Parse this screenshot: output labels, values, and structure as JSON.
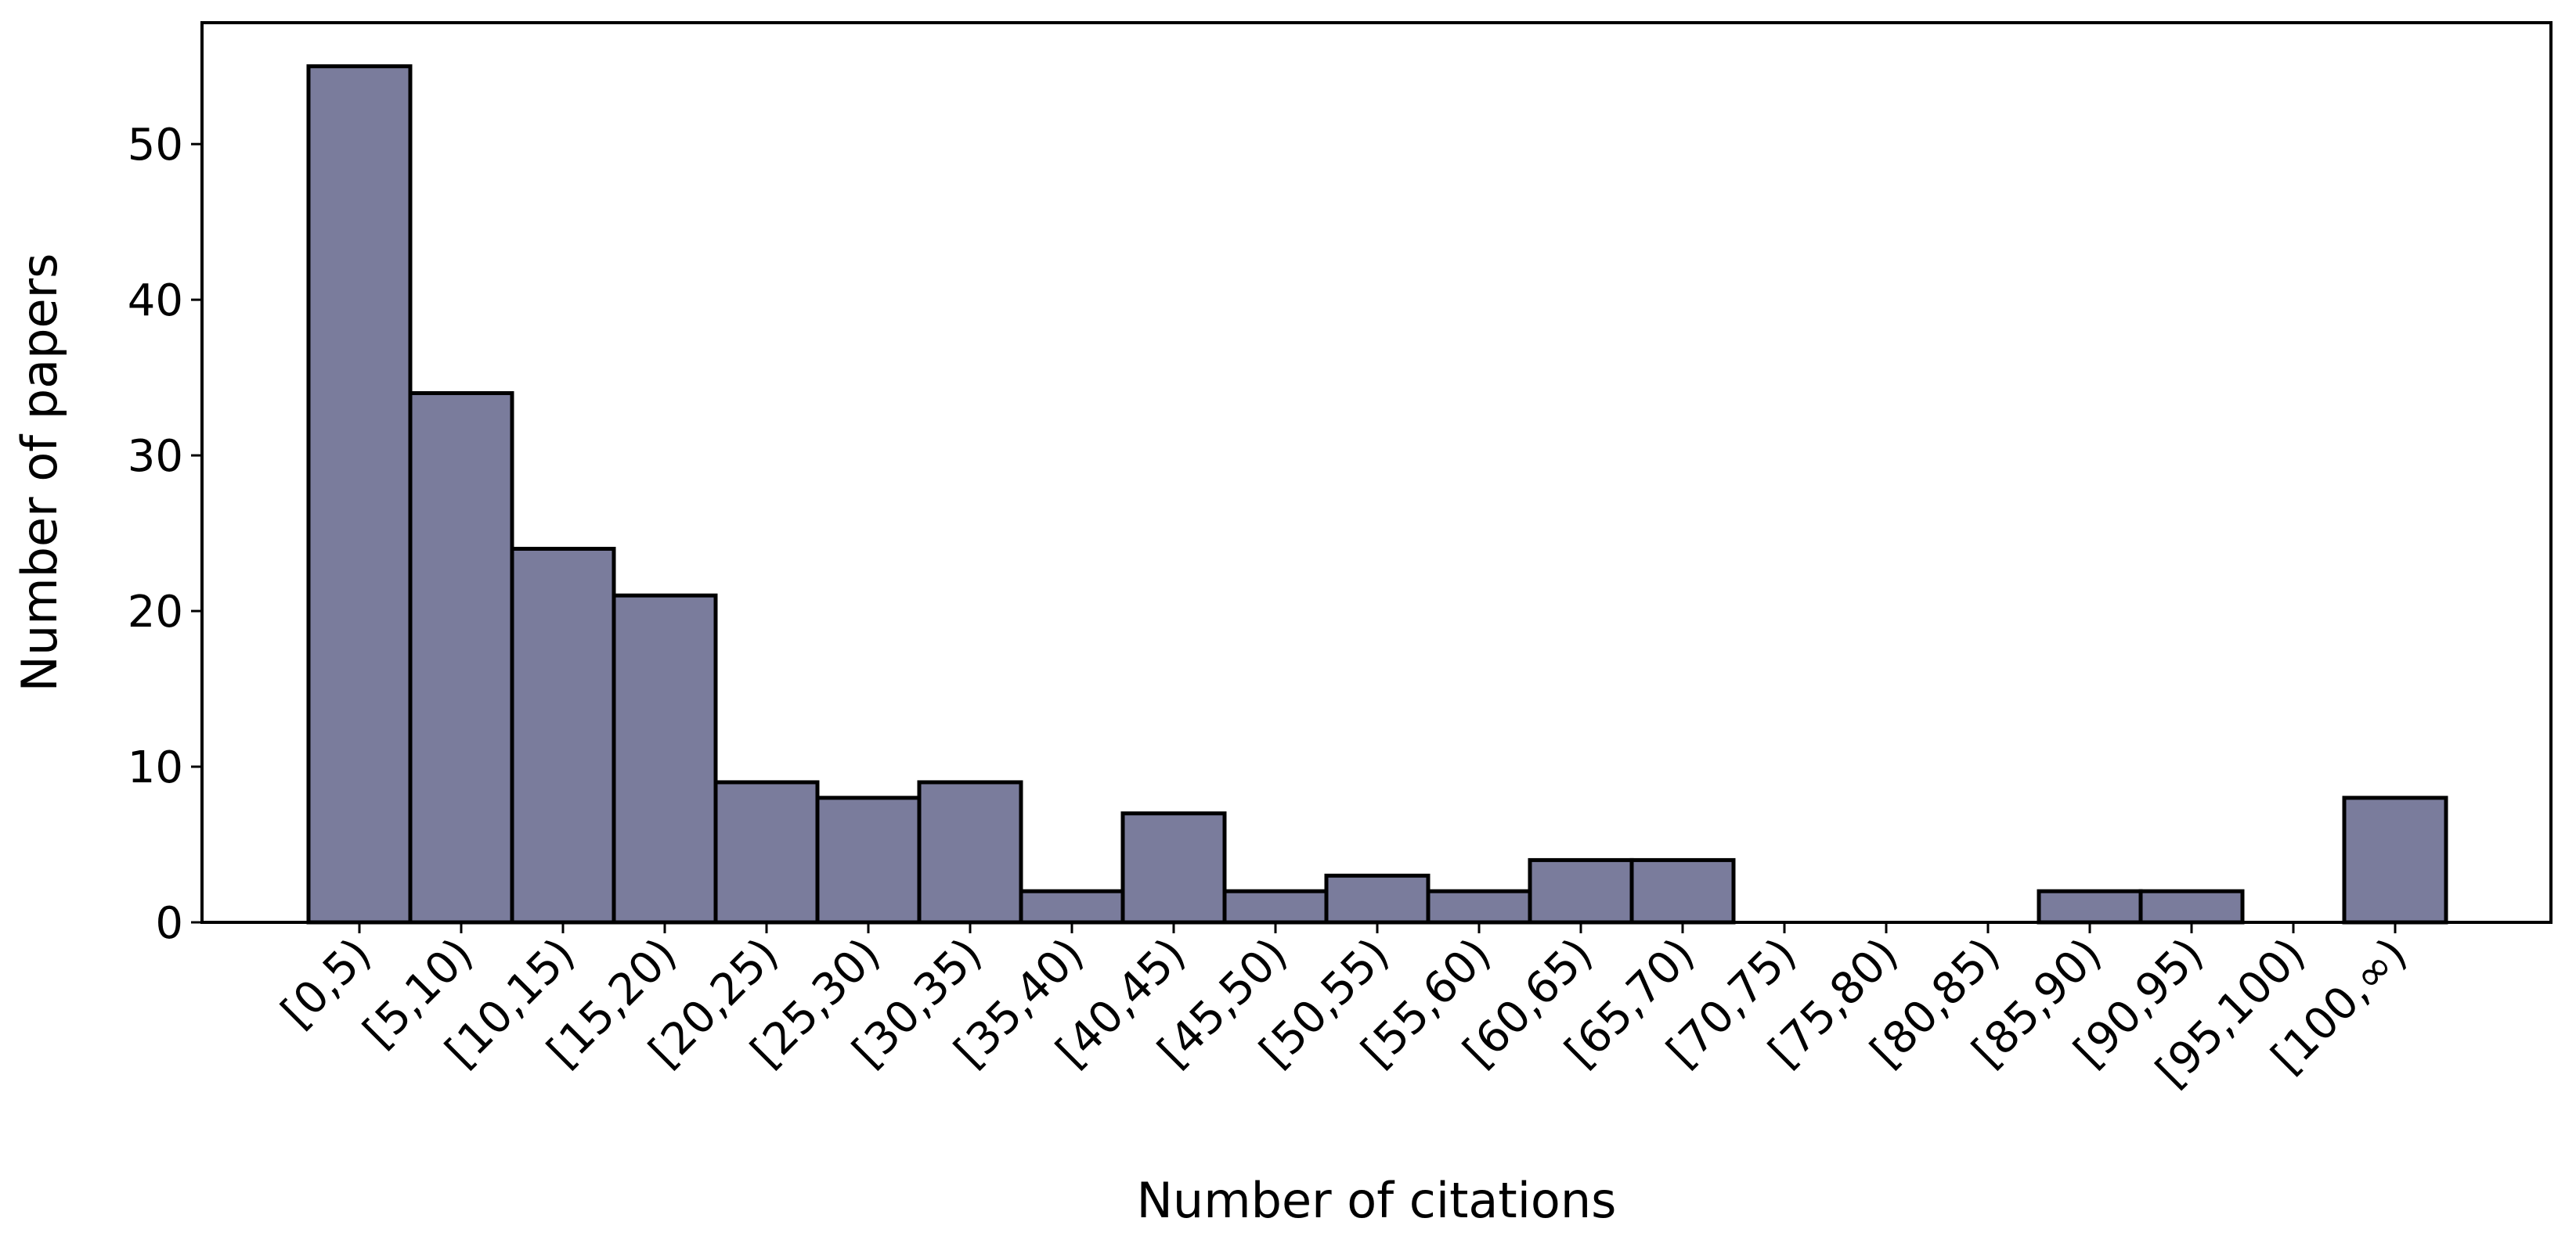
{
  "chart_data": {
    "type": "bar",
    "x_label": "Number of citations",
    "y_label": "Number of papers",
    "categories": [
      "[0,5)",
      "[5,10)",
      "[10,15)",
      "[15,20)",
      "[20,25)",
      "[25,30)",
      "[30,35)",
      "[35,40)",
      "[40,45)",
      "[45,50)",
      "[50,55)",
      "[55,60)",
      "[60,65)",
      "[65,70)",
      "[70,75)",
      "[75,80)",
      "[80,85)",
      "[85,90)",
      "[90,95)",
      "[95,100)",
      "[100,∞)"
    ],
    "values": [
      55,
      34,
      24,
      21,
      9,
      8,
      9,
      2,
      7,
      2,
      3,
      2,
      4,
      4,
      0,
      0,
      0,
      2,
      2,
      0,
      8
    ],
    "color": "#7a7c9c",
    "ylim": [
      0,
      57.8
    ],
    "yticks": [
      0,
      10,
      20,
      30,
      40,
      50
    ],
    "grid": false
  }
}
